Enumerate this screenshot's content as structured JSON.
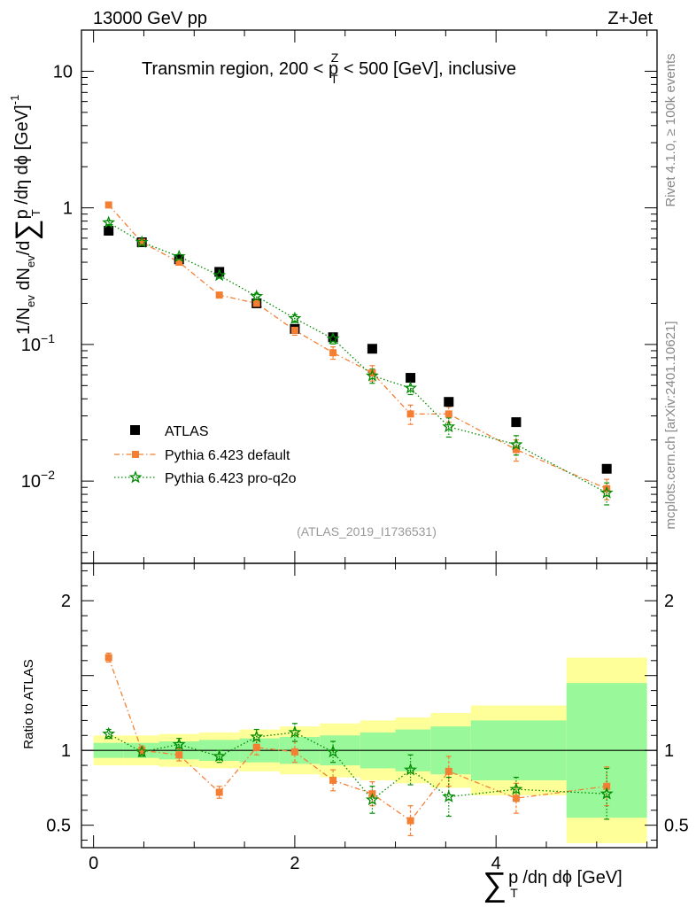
{
  "header": {
    "left": "13000 GeV pp",
    "right": "Z+Jet",
    "region": "Transmin region, 200 < p",
    "region_sup": "Z",
    "region_sub": "T",
    "region_tail": " < 500 [GeV], inclusive",
    "watermark": "(ATLAS_2019_I1736531)"
  },
  "side_labels": {
    "rivet": "Rivet 4.1.0, ≥ 100k events",
    "mcplots": "mcplots.cern.ch [arXiv:2401.10621]"
  },
  "axes": {
    "y_top_label_a": "1/N",
    "y_top_label_ev1": "ev",
    "y_top_label_b": " dN",
    "y_top_label_ev2": "ev",
    "y_top_label_c": "/d",
    "y_top_sum": "∑",
    "y_top_label_d": "p",
    "y_top_label_T": "T",
    "y_top_label_e": " /dη dϕ  [GeV]",
    "y_top_label_exp": "-1",
    "y_bottom_label": "Ratio to ATLAS",
    "x_sum": "∑",
    "x_label_p": "p",
    "x_label_T": "T",
    "x_label_rest": " /dη dϕ [GeV]"
  },
  "legend": [
    {
      "name": "ATLAS",
      "color": "#000000",
      "marker": "square-marker"
    },
    {
      "name": "Pythia 6.423 default",
      "color": "#f47f33",
      "marker": "small-square-marker"
    },
    {
      "name": "Pythia 6.423 pro-q2o",
      "color": "#008a00",
      "marker": "star-marker"
    }
  ],
  "colors": {
    "band_inner": "#99f899",
    "band_outer": "#ffff99",
    "default": "#f47f33",
    "proq2o": "#008a00",
    "data": "#000000"
  },
  "chart_data": {
    "type": "scatter",
    "title": "Transmin region, 200 < pT^Z < 500 [GeV], inclusive",
    "xlabel": "∑ pT /dη dϕ [GeV]",
    "ylabel": "1/Nev dNev/d∑ pT /dη dϕ [GeV]^-1",
    "xlim": [
      -0.12,
      5.6
    ],
    "ylim": [
      0.0025,
      20
    ],
    "yscale": "log",
    "ratio_ylim": [
      0.35,
      2.25
    ],
    "x_ticks": [
      {
        "v": 0,
        "label": "0"
      },
      {
        "v": 2,
        "label": "2"
      },
      {
        "v": 4,
        "label": "4"
      }
    ],
    "y_ticks": [
      {
        "v": 10,
        "base": "10",
        "exp": ""
      },
      {
        "v": 1,
        "base": "1",
        "exp": ""
      },
      {
        "v": 0.1,
        "base": "10",
        "exp": "−1"
      },
      {
        "v": 0.01,
        "base": "10",
        "exp": "−2"
      }
    ],
    "ratio_ticks": [
      {
        "v": 2,
        "label": "2"
      },
      {
        "v": 1,
        "label": "1"
      },
      {
        "v": 0.5,
        "label": "0.5"
      }
    ],
    "bin_edges": [
      0.0,
      0.3,
      0.65,
      1.05,
      1.45,
      1.85,
      2.25,
      2.65,
      3.0,
      3.35,
      3.75,
      4.7,
      5.5
    ],
    "x": [
      0.15,
      0.48,
      0.85,
      1.25,
      1.62,
      2.0,
      2.38,
      2.77,
      3.15,
      3.53,
      4.2,
      5.1
    ],
    "series": [
      {
        "name": "ATLAS",
        "values": [
          0.68,
          0.56,
          0.42,
          0.34,
          0.2,
          0.13,
          0.113,
          0.093,
          0.057,
          0.038,
          0.027,
          0.0123
        ]
      },
      {
        "name": "Pythia 6.423 default",
        "values": [
          1.05,
          0.56,
          0.4,
          0.23,
          0.2,
          0.127,
          0.087,
          0.062,
          0.031,
          0.031,
          0.017,
          0.0088
        ],
        "errors": [
          0.03,
          0.015,
          0.015,
          0.008,
          0.012,
          0.01,
          0.009,
          0.008,
          0.005,
          0.004,
          0.003,
          0.0015
        ],
        "ratio": [
          1.62,
          1.0,
          0.97,
          0.72,
          1.02,
          0.99,
          0.8,
          0.71,
          0.53,
          0.86,
          0.68,
          0.76
        ],
        "ratio_errors": [
          0.03,
          0.03,
          0.04,
          0.04,
          0.05,
          0.07,
          0.07,
          0.08,
          0.1,
          0.1,
          0.1,
          0.13
        ]
      },
      {
        "name": "Pythia 6.423 pro-q2o",
        "values": [
          0.78,
          0.56,
          0.44,
          0.32,
          0.225,
          0.155,
          0.11,
          0.059,
          0.048,
          0.025,
          0.0185,
          0.0082
        ],
        "errors": [
          0.025,
          0.015,
          0.015,
          0.01,
          0.012,
          0.01,
          0.009,
          0.007,
          0.005,
          0.004,
          0.003,
          0.0015
        ],
        "ratio": [
          1.11,
          0.99,
          1.04,
          0.96,
          1.09,
          1.12,
          0.99,
          0.67,
          0.87,
          0.69,
          0.74,
          0.71
        ],
        "ratio_errors": [
          0.03,
          0.03,
          0.04,
          0.04,
          0.05,
          0.06,
          0.07,
          0.09,
          0.1,
          0.13,
          0.08,
          0.17
        ]
      }
    ],
    "band_inner": [
      0.05,
      0.05,
      0.06,
      0.07,
      0.08,
      0.09,
      0.1,
      0.12,
      0.14,
      0.16,
      0.2,
      0.45
    ],
    "band_outer": [
      0.1,
      0.1,
      0.11,
      0.12,
      0.14,
      0.16,
      0.18,
      0.2,
      0.22,
      0.25,
      0.3,
      0.62
    ]
  }
}
